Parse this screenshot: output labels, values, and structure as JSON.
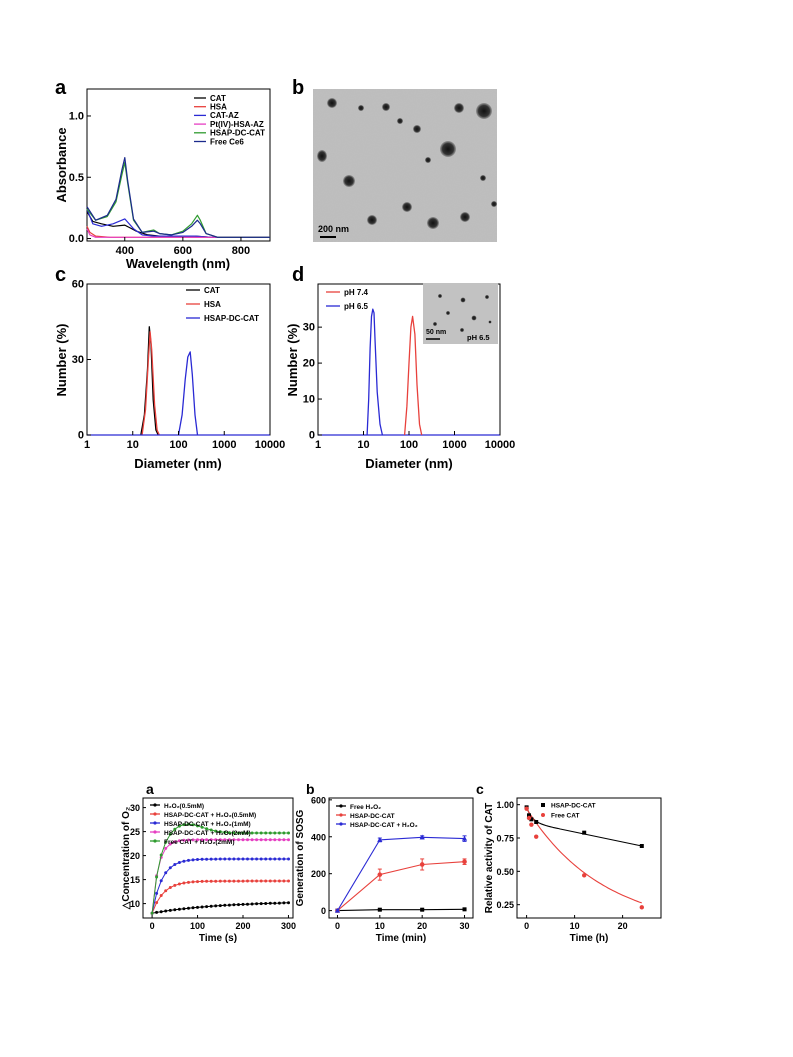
{
  "figure1": {
    "panel_labels": {
      "a": "a",
      "b": "b",
      "c": "c",
      "d": "d"
    }
  },
  "chart_data": [
    {
      "id": "f1a",
      "type": "line",
      "xlabel": "Wavelength (nm)",
      "ylabel": "Absorbance",
      "xlim": [
        270,
        900
      ],
      "ylim": [
        -0.02,
        1.22
      ],
      "xticks": [
        400,
        600,
        800
      ],
      "yticks": [
        0.0,
        0.5,
        1.0
      ],
      "ytick_labels": [
        "0.0",
        "0.5",
        "1.0"
      ],
      "legend_position": "top-right",
      "series": [
        {
          "name": "CAT",
          "color": "#000000",
          "x": [
            270,
            290,
            320,
            360,
            400,
            440,
            480,
            520,
            560,
            600,
            640,
            700,
            800,
            900
          ],
          "y": [
            0.22,
            0.14,
            0.12,
            0.1,
            0.11,
            0.06,
            0.03,
            0.02,
            0.02,
            0.02,
            0.02,
            0.01,
            0.01,
            0.01
          ]
        },
        {
          "name": "HSA",
          "color": "#e8413c",
          "x": [
            270,
            280,
            300,
            350,
            400,
            500,
            600,
            700,
            800,
            900
          ],
          "y": [
            0.1,
            0.05,
            0.02,
            0.01,
            0.01,
            0.01,
            0.01,
            0.01,
            0.01,
            0.01
          ]
        },
        {
          "name": "CAT-AZ",
          "color": "#2a2ad4",
          "x": [
            270,
            290,
            320,
            360,
            400,
            430,
            460,
            500,
            560,
            600,
            640,
            700,
            800,
            900
          ],
          "y": [
            0.24,
            0.12,
            0.1,
            0.12,
            0.16,
            0.08,
            0.03,
            0.02,
            0.02,
            0.02,
            0.02,
            0.01,
            0.01,
            0.01
          ]
        },
        {
          "name": "Pt(IV)-HSA-AZ",
          "color": "#e63fc2",
          "x": [
            270,
            280,
            300,
            350,
            400,
            500,
            600,
            700,
            800,
            900
          ],
          "y": [
            0.08,
            0.03,
            0.01,
            0.01,
            0.01,
            0.01,
            0.01,
            0.01,
            0.01,
            0.01
          ]
        },
        {
          "name": "HSAP-DC-CAT",
          "color": "#2f9b2f",
          "x": [
            270,
            300,
            340,
            370,
            390,
            400,
            410,
            430,
            460,
            500,
            520,
            560,
            600,
            630,
            650,
            660,
            680,
            720,
            800,
            900
          ],
          "y": [
            0.24,
            0.15,
            0.18,
            0.3,
            0.52,
            0.62,
            0.45,
            0.15,
            0.05,
            0.07,
            0.04,
            0.03,
            0.06,
            0.12,
            0.19,
            0.15,
            0.04,
            0.01,
            0.01,
            0.01
          ]
        },
        {
          "name": "Free Ce6",
          "color": "#1b2a8c",
          "x": [
            270,
            300,
            340,
            370,
            390,
            400,
            410,
            430,
            460,
            500,
            520,
            560,
            600,
            630,
            650,
            660,
            680,
            720,
            800,
            900
          ],
          "y": [
            0.26,
            0.15,
            0.19,
            0.32,
            0.56,
            0.66,
            0.47,
            0.16,
            0.05,
            0.06,
            0.04,
            0.03,
            0.05,
            0.1,
            0.15,
            0.12,
            0.04,
            0.01,
            0.01,
            0.01
          ]
        }
      ]
    },
    {
      "id": "f1b",
      "type": "image",
      "scale_bar": "200 nm"
    },
    {
      "id": "f1c",
      "type": "line",
      "xscale": "log",
      "xlabel": "Diameter (nm)",
      "ylabel": "Number (%)",
      "xlim": [
        1,
        10000
      ],
      "ylim": [
        0,
        60
      ],
      "xticks": [
        1,
        10,
        100,
        1000,
        10000
      ],
      "xtick_labels": [
        "1",
        "10",
        "100",
        "1000",
        "10000"
      ],
      "yticks": [
        0,
        30,
        60
      ],
      "legend_position": "top-right",
      "series": [
        {
          "name": "CAT",
          "color": "#000000",
          "x": [
            15,
            18,
            21,
            23,
            25,
            28,
            32,
            36
          ],
          "y": [
            0,
            8,
            26,
            43,
            36,
            14,
            2,
            0
          ]
        },
        {
          "name": "HSA",
          "color": "#e8413c",
          "x": [
            16,
            19,
            22,
            24,
            26,
            30,
            34,
            38
          ],
          "y": [
            0,
            10,
            30,
            41,
            34,
            12,
            2,
            0
          ]
        },
        {
          "name": "HSAP-DC-CAT",
          "color": "#2a2ad4",
          "x": [
            100,
            120,
            140,
            160,
            180,
            200,
            230,
            260
          ],
          "y": [
            0,
            8,
            22,
            31,
            33,
            24,
            8,
            0
          ]
        }
      ]
    },
    {
      "id": "f1d",
      "type": "line",
      "xscale": "log",
      "xlabel": "Diameter (nm)",
      "ylabel": "Number (%)",
      "xlim": [
        1,
        10000
      ],
      "ylim": [
        0,
        42
      ],
      "xticks": [
        1,
        10,
        100,
        1000,
        10000
      ],
      "xtick_labels": [
        "1",
        "10",
        "100",
        "1000",
        "10000"
      ],
      "yticks": [
        0,
        10,
        20,
        30
      ],
      "legend_position": "top-left",
      "inset": {
        "scale_bar": "50 nm",
        "label": "pH 6.5"
      },
      "series": [
        {
          "name": "pH 7.4",
          "color": "#e8413c",
          "x": [
            80,
            90,
            100,
            110,
            120,
            135,
            150,
            170,
            190
          ],
          "y": [
            0,
            8,
            20,
            30,
            33,
            28,
            14,
            3,
            0
          ]
        },
        {
          "name": "pH 6.5",
          "color": "#2a2ad4",
          "x": [
            12,
            13,
            14,
            15,
            16,
            17,
            18,
            20,
            23,
            26
          ],
          "y": [
            0,
            10,
            24,
            33,
            35,
            34,
            26,
            12,
            3,
            0
          ]
        }
      ]
    },
    {
      "id": "f2a",
      "type": "line",
      "panel_label": "a",
      "xlabel": "Time (s)",
      "ylabel": "△Concentration of O₂",
      "xlim": [
        -20,
        310
      ],
      "ylim": [
        7,
        32
      ],
      "xticks": [
        0,
        100,
        200,
        300
      ],
      "yticks": [
        10,
        15,
        20,
        25,
        30
      ],
      "legend_position": "top-left",
      "series": [
        {
          "name": "H₂O₂(0.5mM)",
          "color": "#000000",
          "plateau": 10.5,
          "tau": 150
        },
        {
          "name": "HSAP-DC-CAT + H₂O₂(0.5mM)",
          "color": "#e8413c",
          "plateau": 14.7,
          "tau": 25
        },
        {
          "name": "HSAP-DC-CAT + H₂O₂(1mM)",
          "color": "#2a2ad4",
          "plateau": 19.3,
          "tau": 22
        },
        {
          "name": "HSAP-DC-CAT + H₂O₂(2mM)",
          "color": "#e63fc2",
          "plateau": 23.3,
          "tau": 14
        },
        {
          "name": "Free CAT + H₂O₂(2mM)",
          "color": "#2f9b2f",
          "plateau": 24.7,
          "tau": 18,
          "peak": 26.8
        }
      ]
    },
    {
      "id": "f2b",
      "type": "line",
      "panel_label": "b",
      "xlabel": "Time (min)",
      "ylabel": "Generation of SOSG",
      "xlim": [
        -2,
        32
      ],
      "ylim": [
        -40,
        610
      ],
      "xticks": [
        0,
        10,
        20,
        30
      ],
      "yticks": [
        0,
        200,
        400,
        600
      ],
      "legend_position": "top-left",
      "series": [
        {
          "name": "Free H₂O₂",
          "color": "#000000",
          "x": [
            0,
            10,
            20,
            30
          ],
          "y": [
            0,
            5,
            5,
            7
          ],
          "err": [
            2,
            3,
            3,
            3
          ]
        },
        {
          "name": "HSAP-DC-CAT",
          "color": "#e8413c",
          "x": [
            0,
            10,
            20,
            30
          ],
          "y": [
            0,
            195,
            250,
            265
          ],
          "err": [
            5,
            30,
            30,
            15
          ]
        },
        {
          "name": "HSAP-DC-CAT + H₂O₂",
          "color": "#2a2ad4",
          "x": [
            0,
            10,
            20,
            30
          ],
          "y": [
            0,
            383,
            397,
            390
          ],
          "err": [
            5,
            10,
            8,
            15
          ]
        }
      ]
    },
    {
      "id": "f2c",
      "type": "line",
      "panel_label": "c",
      "xlabel": "Time (h)",
      "ylabel": "Relative activity of CAT",
      "xlim": [
        -2,
        28
      ],
      "ylim": [
        0.15,
        1.05
      ],
      "xticks": [
        0,
        10,
        20
      ],
      "yticks": [
        0.25,
        0.5,
        0.75,
        1.0
      ],
      "ytick_labels": [
        "0.25",
        "0.50",
        "0.75",
        "1.00"
      ],
      "legend_position": "top-right",
      "series": [
        {
          "name": "HSAP-DC-CAT",
          "color": "#000000",
          "marker": "square",
          "x": [
            0,
            0.5,
            1,
            2,
            12,
            24
          ],
          "y": [
            0.98,
            0.92,
            0.89,
            0.87,
            0.79,
            0.69
          ]
        },
        {
          "name": "Free CAT",
          "color": "#e8413c",
          "marker": "circle",
          "x": [
            0,
            0.5,
            1,
            2,
            12,
            24
          ],
          "y": [
            0.97,
            0.9,
            0.85,
            0.76,
            0.47,
            0.23
          ]
        }
      ]
    }
  ]
}
